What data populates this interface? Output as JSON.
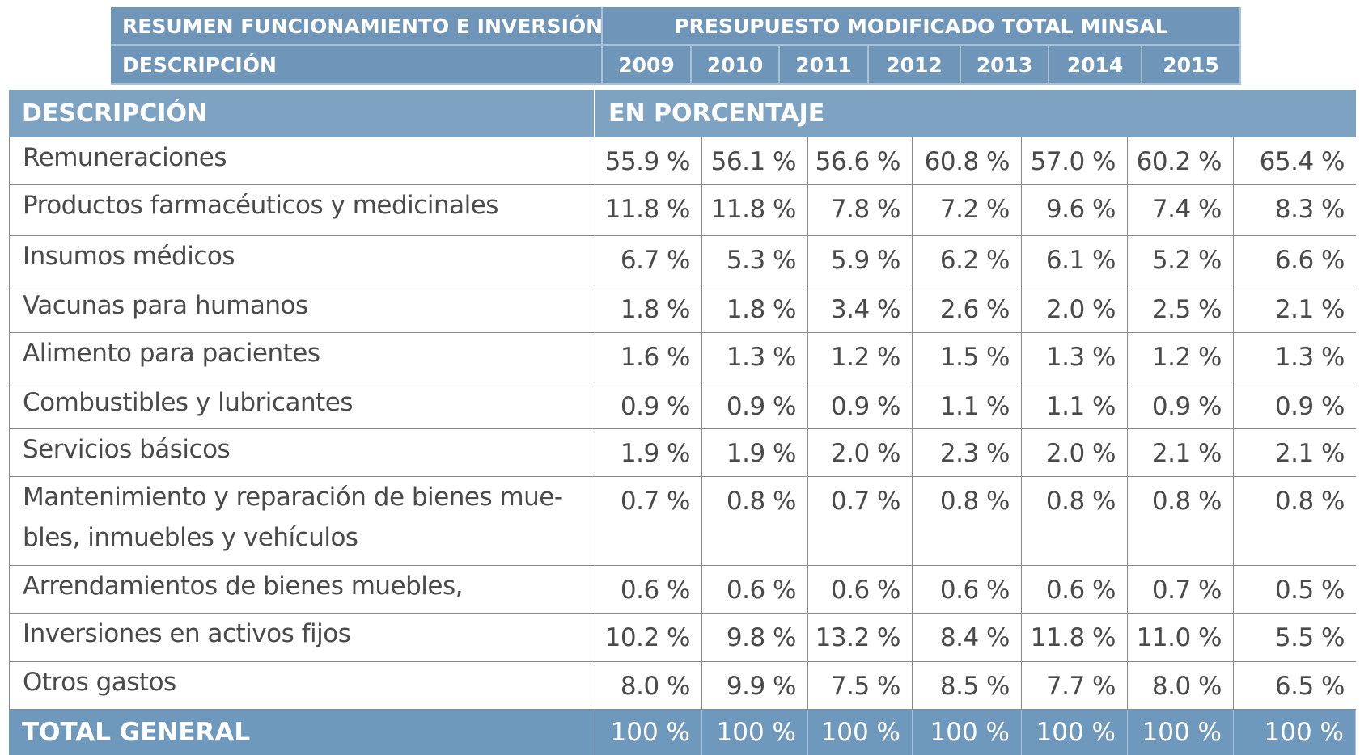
{
  "top_header": {
    "left": "RESUMEN FUNCIONAMIENTO E INVERSIÓN",
    "right": "PRESUPUESTO MODIFICADO TOTAL MINSAL",
    "sub_left": "DESCRIPCIÓN",
    "years": [
      "2009",
      "2010",
      "2011",
      "2012",
      "2013",
      "2014",
      "2015"
    ]
  },
  "table": {
    "header": [
      "DESCRIPCIÓN",
      "EN PORCENTAJE"
    ],
    "rows": [
      [
        "Remuneraciones",
        "55.9 %",
        "56.1 %",
        "56.6 %",
        "60.8 %",
        "57.0 %",
        "60.2 %",
        "65.4 %"
      ],
      [
        "Productos farmacéuticos y medicinales",
        "11.8 %",
        "11.8 %",
        "7.8 %",
        "7.2 %",
        "9.6 %",
        "7.4 %",
        "8.3 %"
      ],
      [
        "Insumos médicos",
        "6.7 %",
        "5.3 %",
        "5.9 %",
        "6.2 %",
        "6.1 %",
        "5.2 %",
        "6.6 %"
      ],
      [
        "Vacunas para humanos",
        "1.8 %",
        "1.8 %",
        "3.4 %",
        "2.6 %",
        "2.0 %",
        "2.5 %",
        "2.1 %"
      ],
      [
        "Alimento para pacientes",
        "1.6 %",
        "1.3 %",
        "1.2 %",
        "1.5 %",
        "1.3 %",
        "1.2 %",
        "1.3 %"
      ],
      [
        "Combustibles y lubricantes",
        "0.9 %",
        "0.9 %",
        "0.9 %",
        "1.1 %",
        "1.1 %",
        "0.9 %",
        "0.9 %"
      ],
      [
        "Servicios básicos",
        "1.9 %",
        "1.9 %",
        "2.0 %",
        "2.3 %",
        "2.0 %",
        "2.1 %",
        "2.1 %"
      ],
      [
        "Mantenimiento y reparación de bienes mue-bles, inmuebles y vehículos",
        "0.7 %",
        "0.8 %",
        "0.7 %",
        "0.8 %",
        "0.8 %",
        "0.8 %",
        "0.8 %"
      ],
      [
        "Arrendamientos de bienes muebles, inmuebles",
        "0.6 %",
        "0.6 %",
        "0.6 %",
        "0.6 %",
        "0.6 %",
        "0.7 %",
        "0.5 %"
      ],
      [
        "Inversiones en activos fijos",
        "10.2 %",
        "9.8 %",
        "13.2 %",
        "8.4 %",
        "11.8 %",
        "11.0 %",
        "5.5 %"
      ],
      [
        "Otros gastos",
        "8.0 %",
        "9.9 %",
        "7.5 %",
        "8.5 %",
        "7.7 %",
        "8.0 %",
        "6.5 %"
      ]
    ],
    "total": [
      "TOTAL GENERAL",
      "100 %",
      "100 %",
      "100 %",
      "100 %",
      "100 %",
      "100 %",
      "100 %"
    ]
  }
}
